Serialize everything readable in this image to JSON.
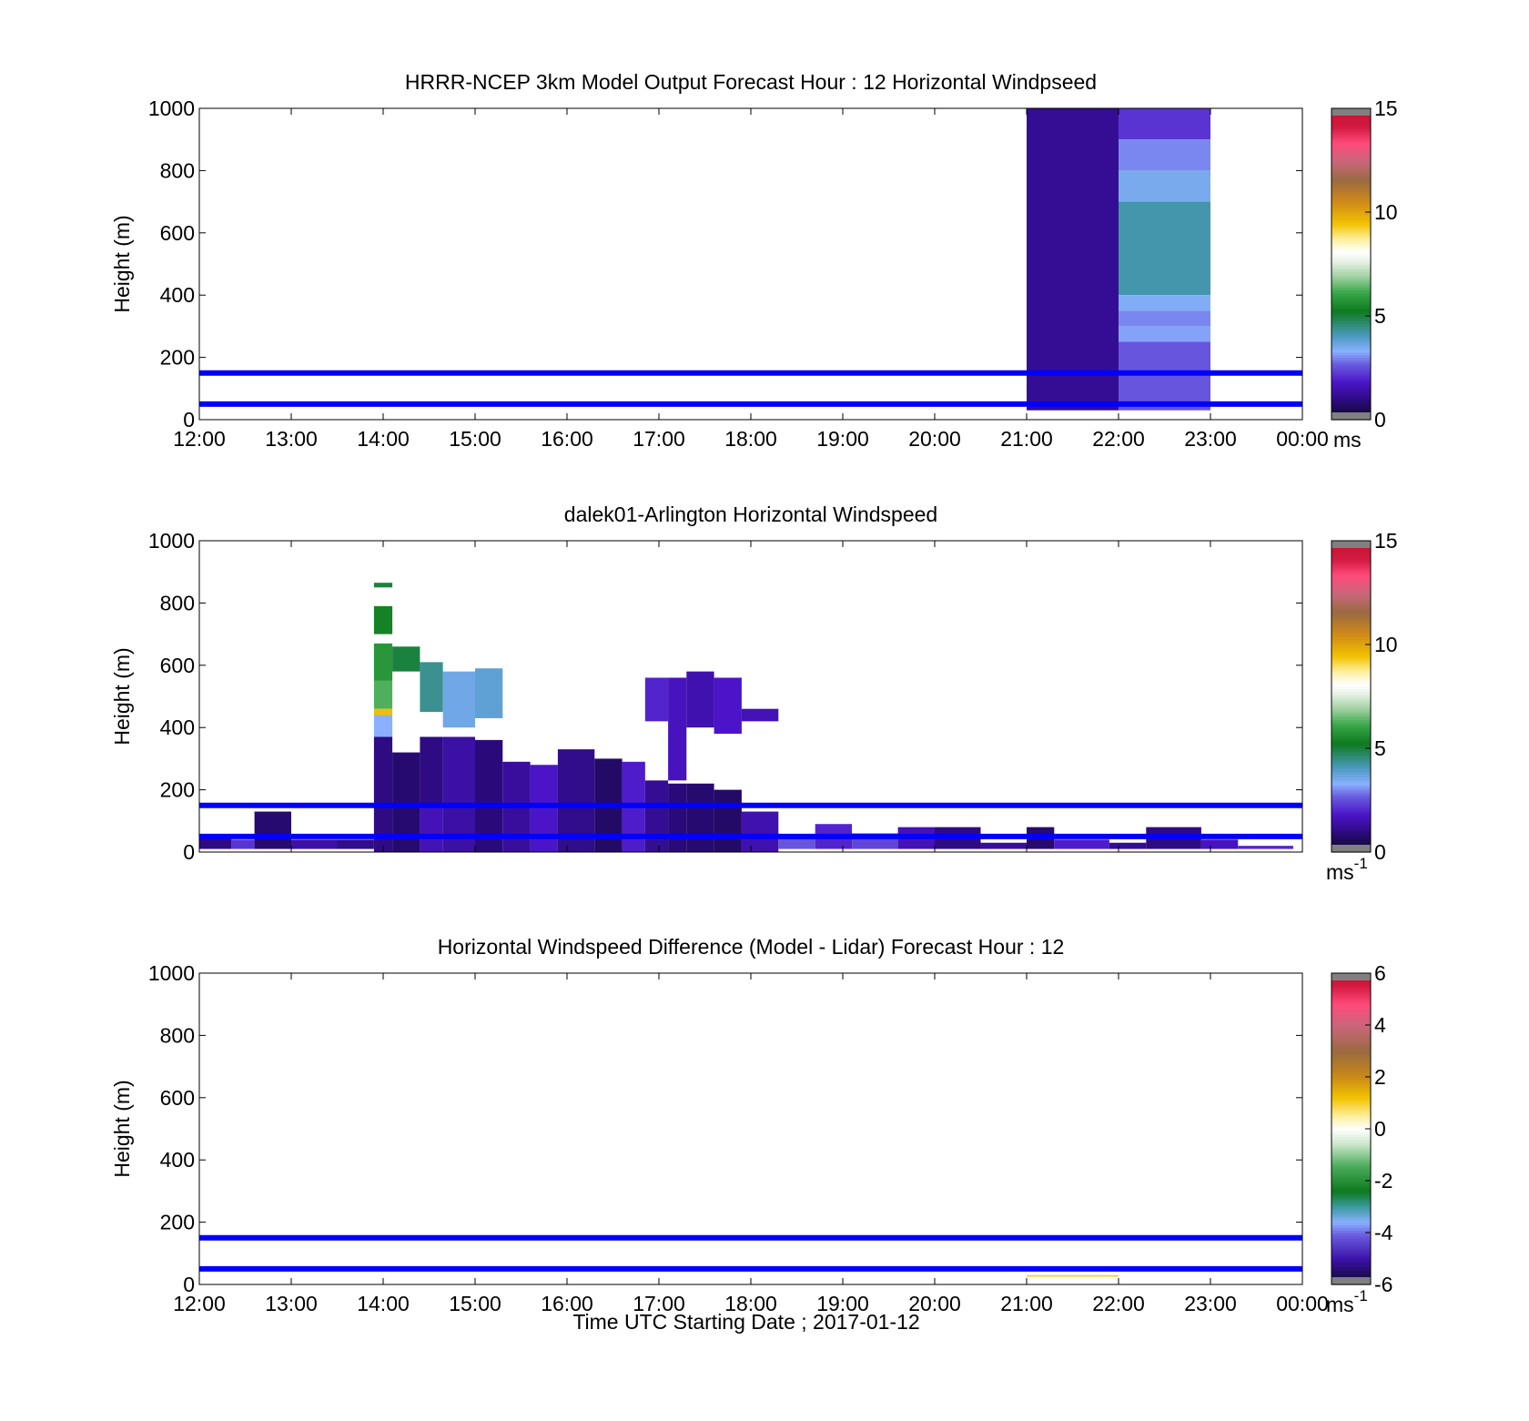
{
  "figure": {
    "xlabel": "Time UTC  Starting Date ; 2017-01-12"
  },
  "chart_data": [
    {
      "type": "heatmap",
      "title": "HRRR-NCEP 3km Model Output   Forecast Hour : 12 Horizontal Windpseed",
      "ylabel": "Height (m)",
      "xlim": [
        12,
        24
      ],
      "ylim": [
        0,
        1000
      ],
      "x_tick_labels": [
        "12:00",
        "13:00",
        "14:00",
        "15:00",
        "16:00",
        "17:00",
        "18:00",
        "19:00",
        "20:00",
        "21:00",
        "22:00",
        "23:00",
        "00:00"
      ],
      "y_ticks": [
        0,
        200,
        400,
        600,
        800,
        1000
      ],
      "reference_lines_m": [
        50,
        150
      ],
      "reference_line_color": "#0000ff",
      "colorbar": {
        "min": 0,
        "max": 15,
        "ticks": [
          0,
          5,
          10,
          15
        ],
        "unit": "ms"
      },
      "cells": [
        {
          "x0": 21,
          "x1": 22,
          "y0": 30,
          "y1": 1000,
          "v": 1.2
        },
        {
          "x0": 22,
          "x1": 23,
          "y0": 900,
          "y1": 1000,
          "v": 2.2
        },
        {
          "x0": 22,
          "x1": 23,
          "y0": 800,
          "y1": 900,
          "v": 3.0
        },
        {
          "x0": 22,
          "x1": 23,
          "y0": 700,
          "y1": 800,
          "v": 3.5
        },
        {
          "x0": 22,
          "x1": 23,
          "y0": 400,
          "y1": 700,
          "v": 4.2
        },
        {
          "x0": 22,
          "x1": 23,
          "y0": 350,
          "y1": 400,
          "v": 3.4
        },
        {
          "x0": 22,
          "x1": 23,
          "y0": 300,
          "y1": 350,
          "v": 3.0
        },
        {
          "x0": 22,
          "x1": 23,
          "y0": 250,
          "y1": 300,
          "v": 3.2
        },
        {
          "x0": 22,
          "x1": 23,
          "y0": 30,
          "y1": 250,
          "v": 2.6
        }
      ]
    },
    {
      "type": "heatmap",
      "title": "dalek01-Arlington  Horizontal Windspeed",
      "ylabel": "Height (m)",
      "xlim": [
        12,
        24
      ],
      "ylim": [
        0,
        1000
      ],
      "y_ticks": [
        0,
        200,
        400,
        600,
        800,
        1000
      ],
      "reference_lines_m": [
        50,
        150
      ],
      "reference_line_color": "#0000ff",
      "colorbar": {
        "min": 0,
        "max": 15,
        "ticks": [
          0,
          5,
          10,
          15
        ],
        "unit": "ms",
        "unit_exp": "-1"
      },
      "cells": [
        {
          "x0": 13.9,
          "x1": 14.1,
          "y0": 850,
          "y1": 865,
          "v": 5.0
        },
        {
          "x0": 13.9,
          "x1": 14.1,
          "y0": 700,
          "y1": 790,
          "v": 5.4
        },
        {
          "x0": 13.9,
          "x1": 14.1,
          "y0": 550,
          "y1": 670,
          "v": 5.8
        },
        {
          "x0": 13.9,
          "x1": 14.1,
          "y0": 460,
          "y1": 550,
          "v": 6.3
        },
        {
          "x0": 13.9,
          "x1": 14.1,
          "y0": 440,
          "y1": 460,
          "v": 9.5
        },
        {
          "x0": 13.9,
          "x1": 14.1,
          "y0": 370,
          "y1": 440,
          "v": 3.3
        },
        {
          "x0": 13.9,
          "x1": 14.1,
          "y0": 0,
          "y1": 370,
          "v": 1.0
        },
        {
          "x0": 14.1,
          "x1": 14.4,
          "y0": 580,
          "y1": 660,
          "v": 5.0
        },
        {
          "x0": 14.4,
          "x1": 14.65,
          "y0": 450,
          "y1": 610,
          "v": 4.4
        },
        {
          "x0": 14.65,
          "x1": 15.0,
          "y0": 400,
          "y1": 580,
          "v": 3.6
        },
        {
          "x0": 15.0,
          "x1": 15.3,
          "y0": 430,
          "y1": 590,
          "v": 3.8
        },
        {
          "x0": 14.1,
          "x1": 14.4,
          "y0": 0,
          "y1": 320,
          "v": 0.8
        },
        {
          "x0": 14.4,
          "x1": 14.65,
          "y0": 150,
          "y1": 370,
          "v": 1.0
        },
        {
          "x0": 14.4,
          "x1": 14.65,
          "y0": 0,
          "y1": 150,
          "v": 1.6
        },
        {
          "x0": 14.65,
          "x1": 15.0,
          "y0": 0,
          "y1": 370,
          "v": 1.4
        },
        {
          "x0": 15.0,
          "x1": 15.3,
          "y0": 0,
          "y1": 360,
          "v": 0.9
        },
        {
          "x0": 15.3,
          "x1": 15.6,
          "y0": 0,
          "y1": 290,
          "v": 1.3
        },
        {
          "x0": 15.6,
          "x1": 15.9,
          "y0": 0,
          "y1": 280,
          "v": 1.8
        },
        {
          "x0": 15.9,
          "x1": 16.3,
          "y0": 0,
          "y1": 330,
          "v": 1.1
        },
        {
          "x0": 16.3,
          "x1": 16.6,
          "y0": 0,
          "y1": 300,
          "v": 0.7
        },
        {
          "x0": 16.6,
          "x1": 16.85,
          "y0": 0,
          "y1": 290,
          "v": 1.9
        },
        {
          "x0": 16.85,
          "x1": 17.1,
          "y0": 0,
          "y1": 230,
          "v": 1.2
        },
        {
          "x0": 17.1,
          "x1": 17.3,
          "y0": 0,
          "y1": 220,
          "v": 0.9
        },
        {
          "x0": 16.85,
          "x1": 17.1,
          "y0": 420,
          "y1": 560,
          "v": 2.0
        },
        {
          "x0": 17.1,
          "x1": 17.3,
          "y0": 230,
          "y1": 560,
          "v": 1.7
        },
        {
          "x0": 17.3,
          "x1": 17.6,
          "y0": 400,
          "y1": 580,
          "v": 1.5
        },
        {
          "x0": 17.6,
          "x1": 17.9,
          "y0": 380,
          "y1": 560,
          "v": 1.8
        },
        {
          "x0": 17.9,
          "x1": 18.3,
          "y0": 420,
          "y1": 460,
          "v": 1.6
        },
        {
          "x0": 17.3,
          "x1": 17.6,
          "y0": 0,
          "y1": 220,
          "v": 0.8
        },
        {
          "x0": 17.6,
          "x1": 17.9,
          "y0": 0,
          "y1": 200,
          "v": 0.7
        },
        {
          "x0": 17.9,
          "x1": 18.3,
          "y0": 0,
          "y1": 130,
          "v": 1.5
        },
        {
          "x0": 12.0,
          "x1": 12.35,
          "y0": 10,
          "y1": 50,
          "v": 1.0
        },
        {
          "x0": 12.35,
          "x1": 12.6,
          "y0": 10,
          "y1": 40,
          "v": 2.2
        },
        {
          "x0": 12.6,
          "x1": 13.0,
          "y0": 10,
          "y1": 130,
          "v": 0.8
        },
        {
          "x0": 13.0,
          "x1": 13.5,
          "y0": 10,
          "y1": 40,
          "v": 1.4
        },
        {
          "x0": 13.5,
          "x1": 13.9,
          "y0": 10,
          "y1": 40,
          "v": 1.1
        },
        {
          "x0": 18.3,
          "x1": 18.7,
          "y0": 10,
          "y1": 50,
          "v": 2.6
        },
        {
          "x0": 18.7,
          "x1": 19.1,
          "y0": 10,
          "y1": 90,
          "v": 2.0
        },
        {
          "x0": 19.1,
          "x1": 19.6,
          "y0": 10,
          "y1": 60,
          "v": 2.4
        },
        {
          "x0": 19.6,
          "x1": 20.0,
          "y0": 10,
          "y1": 80,
          "v": 1.6
        },
        {
          "x0": 20.0,
          "x1": 20.5,
          "y0": 10,
          "y1": 80,
          "v": 1.0
        },
        {
          "x0": 20.5,
          "x1": 21.0,
          "y0": 10,
          "y1": 30,
          "v": 1.3
        },
        {
          "x0": 21.0,
          "x1": 21.3,
          "y0": 10,
          "y1": 80,
          "v": 0.8
        },
        {
          "x0": 21.3,
          "x1": 21.9,
          "y0": 10,
          "y1": 40,
          "v": 1.9
        },
        {
          "x0": 21.9,
          "x1": 22.3,
          "y0": 10,
          "y1": 30,
          "v": 1.2
        },
        {
          "x0": 22.3,
          "x1": 22.9,
          "y0": 10,
          "y1": 80,
          "v": 1.0
        },
        {
          "x0": 22.9,
          "x1": 23.3,
          "y0": 10,
          "y1": 40,
          "v": 1.7
        },
        {
          "x0": 23.3,
          "x1": 23.9,
          "y0": 10,
          "y1": 20,
          "v": 2.0
        }
      ]
    },
    {
      "type": "heatmap",
      "title": "Horizontal Windspeed Difference (Model - Lidar) Forecast Hour : 12",
      "ylabel": "Height (m)",
      "xlim": [
        12,
        24
      ],
      "ylim": [
        0,
        1000
      ],
      "x_tick_labels": [
        "12:00",
        "13:00",
        "14:00",
        "15:00",
        "16:00",
        "17:00",
        "18:00",
        "19:00",
        "20:00",
        "21:00",
        "22:00",
        "23:00",
        "00:00"
      ],
      "y_ticks": [
        0,
        200,
        400,
        600,
        800,
        1000
      ],
      "reference_lines_m": [
        50,
        150
      ],
      "reference_line_color": "#0000ff",
      "colorbar": {
        "min": -6,
        "max": 6,
        "ticks": [
          -6,
          -4,
          -2,
          0,
          2,
          4,
          6
        ],
        "unit": "ms",
        "unit_exp": "-1"
      },
      "cells": [
        {
          "x0": 21.0,
          "x1": 22.0,
          "y0": 25,
          "y1": 30,
          "v": 1.0
        }
      ]
    }
  ]
}
